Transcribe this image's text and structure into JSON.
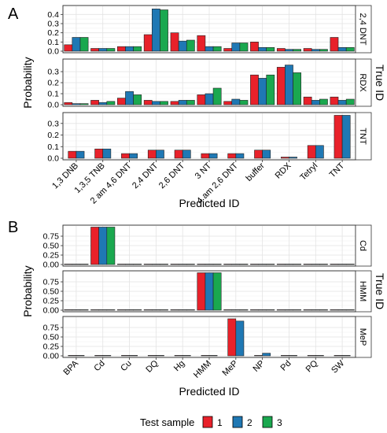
{
  "colors": {
    "test1": "#e8212a",
    "test2": "#1f78b4",
    "test3": "#1aa84f",
    "panel_bg": "#ffffff",
    "grid": "#e3e3e3",
    "strip_bg": "#ffffff"
  },
  "legend": {
    "title": "Test sample",
    "labels": [
      "1",
      "2",
      "3"
    ]
  },
  "chart_data": [
    {
      "type": "bar",
      "panel_label": "A",
      "xlabel": "Predicted ID",
      "ylabel": "Probability",
      "facet_title": "True ID",
      "categories": [
        "1,3 DNB",
        "1,3,5 TNB",
        "2 am 4,6 DNT",
        "2,4 DNT",
        "2,6 DNT",
        "3 NT",
        "4 am 2,6 DNT",
        "buffer",
        "RDX",
        "Tetryl",
        "TNT"
      ],
      "facets": [
        {
          "name": "2,4 DNT",
          "ylim": [
            0,
            0.48
          ],
          "yticks": [
            0.0,
            0.1,
            0.2,
            0.3,
            0.4
          ],
          "tick_labels": [
            "0.0",
            "0.1",
            "0.2",
            "0.3",
            "0.4"
          ],
          "series": [
            {
              "name": "1",
              "values": [
                0.07,
                0.03,
                0.05,
                0.18,
                0.2,
                0.17,
                0.03,
                0.1,
                0.03,
                0.03,
                0.15
              ]
            },
            {
              "name": "2",
              "values": [
                0.15,
                0.03,
                0.05,
                0.46,
                0.11,
                0.05,
                0.09,
                0.04,
                0.02,
                0.02,
                0.04
              ]
            },
            {
              "name": "3",
              "values": [
                0.15,
                0.03,
                0.05,
                0.45,
                0.12,
                0.05,
                0.09,
                0.04,
                0.02,
                0.02,
                0.04
              ]
            }
          ]
        },
        {
          "name": "RDX",
          "ylim": [
            0,
            0.4
          ],
          "yticks": [
            0.0,
            0.1,
            0.2,
            0.3
          ],
          "tick_labels": [
            "0.0",
            "0.1",
            "0.2",
            "0.3"
          ],
          "series": [
            {
              "name": "1",
              "values": [
                0.02,
                0.04,
                0.06,
                0.04,
                0.03,
                0.09,
                0.03,
                0.27,
                0.34,
                0.07,
                0.07
              ]
            },
            {
              "name": "2",
              "values": [
                0.01,
                0.02,
                0.12,
                0.03,
                0.04,
                0.1,
                0.05,
                0.24,
                0.36,
                0.04,
                0.04
              ]
            },
            {
              "name": "3",
              "values": [
                0.01,
                0.03,
                0.09,
                0.03,
                0.04,
                0.15,
                0.04,
                0.27,
                0.29,
                0.05,
                0.05
              ]
            }
          ]
        },
        {
          "name": "TNT",
          "ylim": [
            0,
            0.38
          ],
          "yticks": [
            0.0,
            0.1,
            0.2,
            0.3
          ],
          "tick_labels": [
            "0.0",
            "0.1",
            "0.2",
            "0.3"
          ],
          "series": [
            {
              "name": "1",
              "values": [
                0.06,
                0.08,
                0.04,
                0.07,
                0.07,
                0.04,
                0.04,
                0.07,
                0.01,
                0.11,
                0.37
              ]
            },
            {
              "name": "2",
              "values": [
                0.06,
                0.08,
                0.04,
                0.07,
                0.07,
                0.04,
                0.04,
                0.07,
                0.01,
                0.11,
                0.37
              ]
            }
          ]
        }
      ]
    },
    {
      "type": "bar",
      "panel_label": "B",
      "xlabel": "Predicted ID",
      "ylabel": "Probability",
      "facet_title": "True ID",
      "categories": [
        "BPA",
        "Cd",
        "Cu",
        "DQ",
        "Hg",
        "HMM",
        "MeP",
        "NP",
        "Pd",
        "PQ",
        "SW"
      ],
      "facets": [
        {
          "name": "Cd",
          "ylim": [
            0,
            1.0
          ],
          "yticks": [
            0.0,
            0.25,
            0.5,
            0.75
          ],
          "tick_labels": [
            "0.00",
            "0.25",
            "0.50",
            "0.75"
          ],
          "series": [
            {
              "name": "1",
              "values": [
                0,
                0.99,
                0,
                0,
                0,
                0,
                0,
                0,
                0,
                0,
                0
              ]
            },
            {
              "name": "2",
              "values": [
                0,
                0.99,
                0,
                0,
                0,
                0,
                0,
                0,
                0,
                0,
                0
              ]
            },
            {
              "name": "3",
              "values": [
                0,
                0.99,
                0,
                0,
                0,
                0,
                0,
                0,
                0,
                0,
                0
              ]
            }
          ]
        },
        {
          "name": "HMM",
          "ylim": [
            0,
            1.0
          ],
          "yticks": [
            0.0,
            0.25,
            0.5,
            0.75
          ],
          "tick_labels": [
            "0.00",
            "0.25",
            "0.50",
            "0.75"
          ],
          "series": [
            {
              "name": "1",
              "values": [
                0,
                0,
                0,
                0,
                0,
                0.99,
                0,
                0,
                0,
                0,
                0
              ]
            },
            {
              "name": "2",
              "values": [
                0,
                0,
                0,
                0,
                0,
                0.99,
                0,
                0,
                0,
                0,
                0
              ]
            },
            {
              "name": "3",
              "values": [
                0,
                0,
                0,
                0,
                0,
                0.99,
                0,
                0,
                0,
                0,
                0
              ]
            }
          ]
        },
        {
          "name": "MeP",
          "ylim": [
            0,
            1.0
          ],
          "yticks": [
            0.0,
            0.25,
            0.5,
            0.75
          ],
          "tick_labels": [
            "0.00",
            "0.25",
            "0.50",
            "0.75"
          ],
          "series": [
            {
              "name": "1",
              "values": [
                0,
                0,
                0,
                0,
                0,
                0,
                0.98,
                0,
                0,
                0,
                0
              ]
            },
            {
              "name": "2",
              "values": [
                0,
                0,
                0,
                0,
                0,
                0,
                0.92,
                0.07,
                0,
                0,
                0
              ]
            }
          ]
        }
      ]
    }
  ]
}
